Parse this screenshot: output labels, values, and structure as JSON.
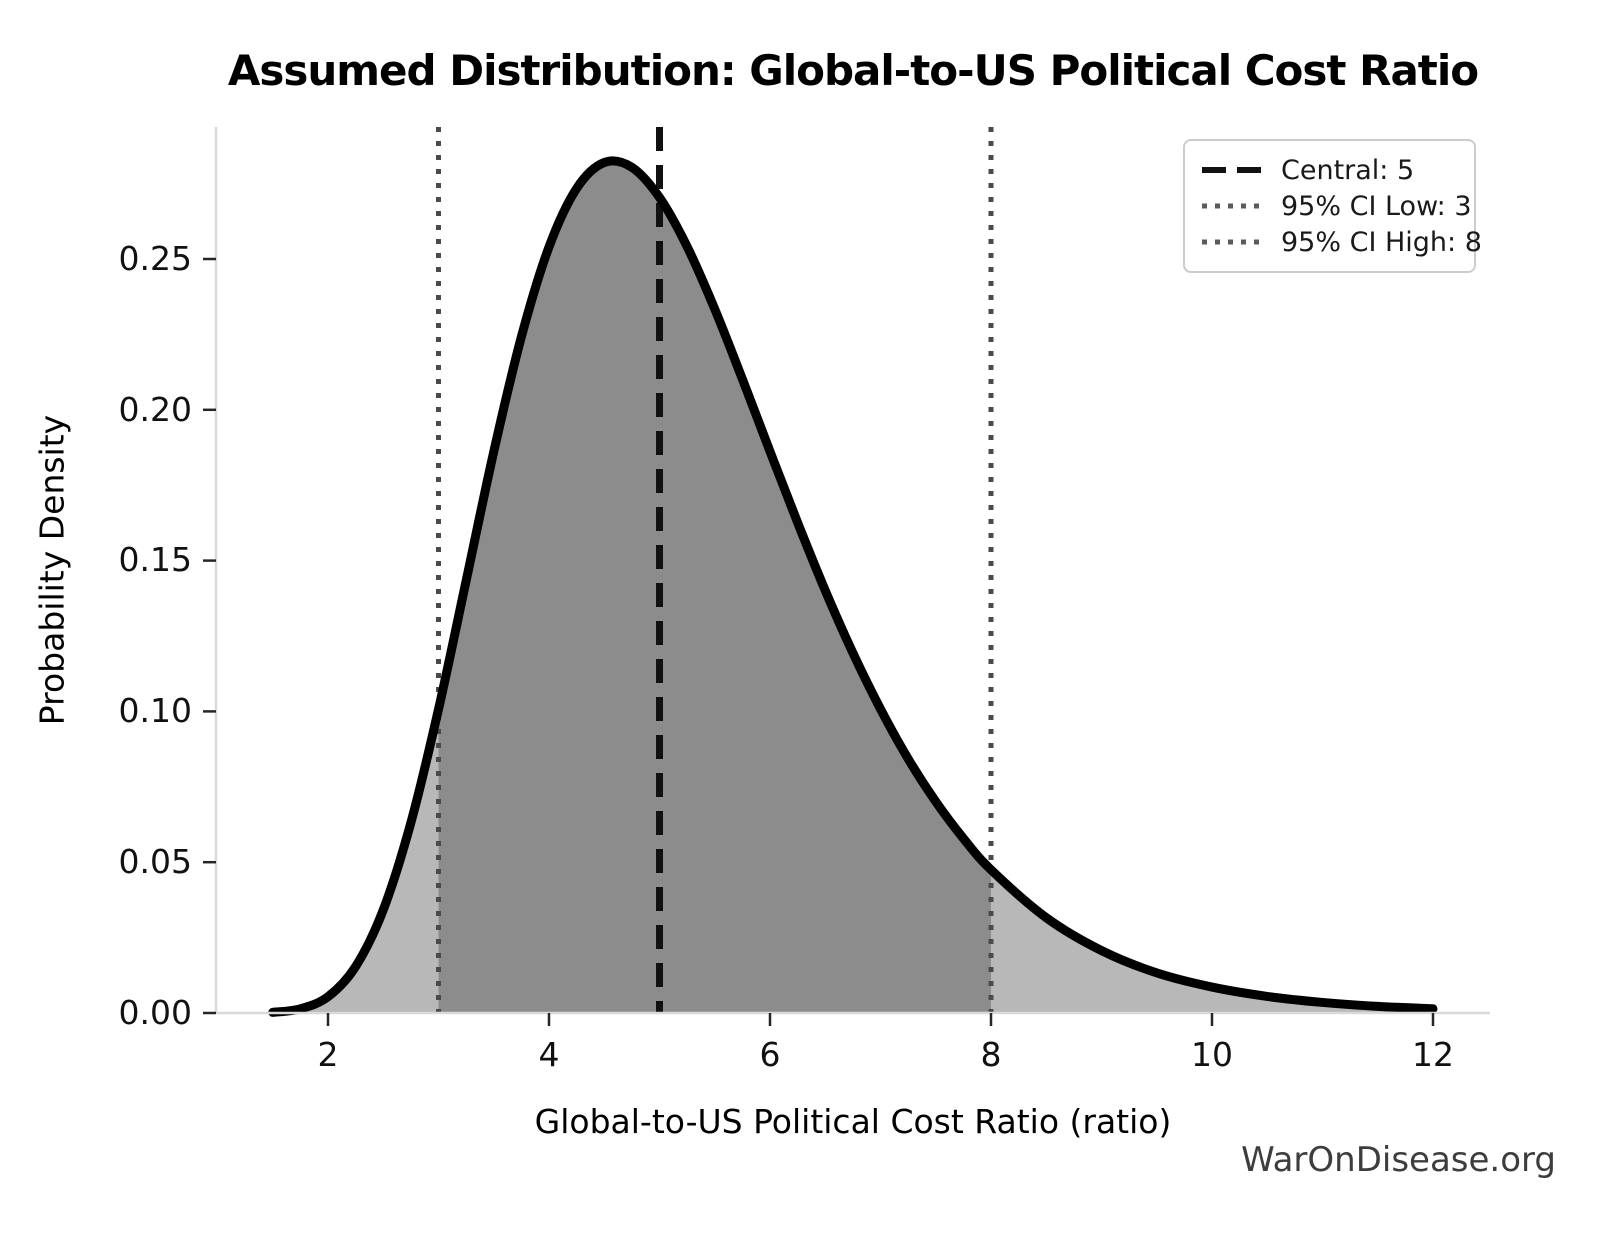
{
  "title": "Assumed Distribution: Global-to-US Political Cost Ratio",
  "watermark": "WarOnDisease.org",
  "chart_data": {
    "type": "area",
    "subtype": "probability-density-curve",
    "title": "Assumed Distribution: Global-to-US Political Cost Ratio",
    "xlabel": "Global-to-US Political Cost Ratio (ratio)",
    "ylabel": "Probability Density",
    "xlim": [
      1.0,
      12.5
    ],
    "ylim": [
      0,
      0.294
    ],
    "grid": false,
    "xticks": [
      2,
      4,
      6,
      8,
      10,
      12
    ],
    "xtick_labels": [
      "2",
      "4",
      "6",
      "8",
      "10",
      "12"
    ],
    "yticks": [
      0.0,
      0.05,
      0.1,
      0.15,
      0.2,
      0.25
    ],
    "ytick_labels": [
      "0.00",
      "0.05",
      "0.10",
      "0.15",
      "0.20",
      "0.25"
    ],
    "distribution": {
      "family": "lognormal",
      "median": 5,
      "sigma": 0.295,
      "peak_x": 4.55,
      "peak_density": 0.282
    },
    "x": [
      1.5,
      1.75,
      2,
      2.25,
      2.5,
      2.75,
      3,
      3.25,
      3.5,
      3.75,
      4,
      4.25,
      4.5,
      4.75,
      5,
      5.25,
      5.5,
      5.75,
      6,
      6.25,
      6.5,
      6.75,
      7,
      7.25,
      7.5,
      7.75,
      8,
      8.5,
      9,
      9.5,
      10,
      10.5,
      11,
      11.5,
      12
    ],
    "density": [
      0.0002,
      0.0014,
      0.0054,
      0.0154,
      0.0342,
      0.0631,
      0.1007,
      0.1433,
      0.1861,
      0.2242,
      0.254,
      0.2734,
      0.282,
      0.2804,
      0.2704,
      0.2541,
      0.2334,
      0.2102,
      0.1862,
      0.1626,
      0.1401,
      0.1194,
      0.1008,
      0.0843,
      0.0701,
      0.0579,
      0.0475,
      0.0316,
      0.0207,
      0.0133,
      0.0086,
      0.0055,
      0.0035,
      0.0022,
      0.0014
    ],
    "markers": {
      "central": {
        "value": 5,
        "label": "Central: 5",
        "style": "dashed"
      },
      "ci_low": {
        "value": 3,
        "label": "95% CI Low: 3",
        "style": "dotted"
      },
      "ci_high": {
        "value": 8,
        "label": "95% CI High: 8",
        "style": "dotted"
      }
    },
    "ci_fill_range": [
      3,
      8
    ],
    "legend": {
      "position": "upper right",
      "entries": [
        {
          "label": "Central: 5",
          "style": "dashed",
          "color": "#111111"
        },
        {
          "label": "95% CI Low: 3",
          "style": "dotted",
          "color": "#5a5a5a"
        },
        {
          "label": "95% CI High: 8",
          "style": "dotted",
          "color": "#5a5a5a"
        }
      ]
    },
    "colors": {
      "curve": "#000000",
      "fill_light": "#b8b8b8",
      "fill_dark": "#8c8c8c",
      "central_line": "#111111",
      "ci_line": "#4a4a4a",
      "spine": "#d9d9d9",
      "tick": "#262626",
      "text": "#1a1a1a",
      "watermark": "#3d3d3d"
    }
  }
}
